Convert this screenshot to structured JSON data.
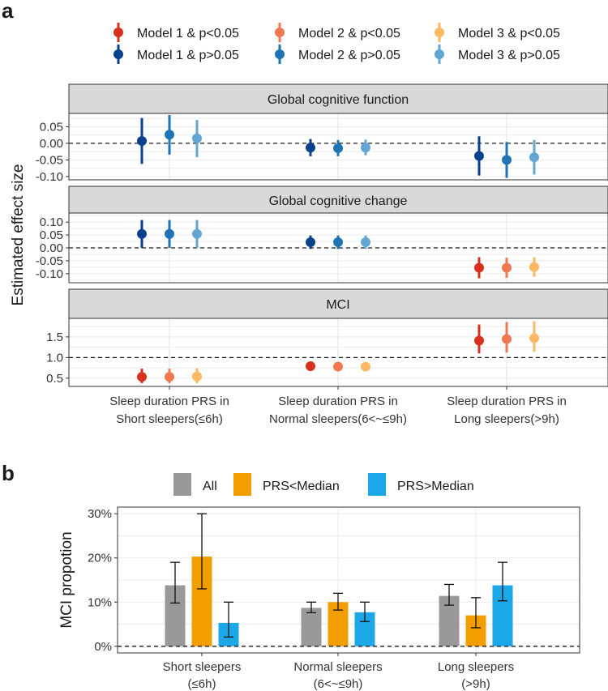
{
  "panel_a": {
    "label": "a",
    "legend": [
      {
        "name": "Model 1 & p<0.05",
        "color": "#D7301F"
      },
      {
        "name": "Model 2 & p<0.05",
        "color": "#F07850"
      },
      {
        "name": "Model 3 & p<0.05",
        "color": "#FDB863"
      },
      {
        "name": "Model 1 & p>0.05",
        "color": "#08418B"
      },
      {
        "name": "Model 2 & p>0.05",
        "color": "#1E74B4"
      },
      {
        "name": "Model 3 & p>0.05",
        "color": "#63A6D4"
      }
    ],
    "ylabel": "Estimated effect size",
    "groups": [
      [
        "Sleep duration PRS in",
        "Short sleepers(≤6h)"
      ],
      [
        "Sleep duration PRS in",
        "Normal sleepers(6<~≤9h)"
      ],
      [
        "Sleep duration PRS in",
        "Long sleepers(>9h)"
      ]
    ]
  },
  "panel_b": {
    "label": "b",
    "ylabel": "MCI propotion"
  },
  "chart_data": [
    {
      "type": "scatter",
      "subtype": "point-range",
      "title": "Global cognitive function",
      "categories": [
        "Short sleepers(≤6h)",
        "Normal sleepers(6<~≤9h)",
        "Long sleepers(>9h)"
      ],
      "models": [
        "Model 1",
        "Model 2",
        "Model 3"
      ],
      "reference_line": 0,
      "ylim": [
        -0.11,
        0.09
      ],
      "yticks": [
        0.05,
        0.0,
        -0.05,
        -0.1
      ],
      "ytick_labels": [
        "0.05",
        "0.00",
        "-0.05",
        "-0.10"
      ],
      "points": [
        [
          {
            "est": 0.007,
            "lo": -0.062,
            "hi": 0.076,
            "sig": false
          },
          {
            "est": 0.026,
            "lo": -0.034,
            "hi": 0.085,
            "sig": false
          },
          {
            "est": 0.015,
            "lo": -0.042,
            "hi": 0.07,
            "sig": false
          }
        ],
        [
          {
            "est": -0.013,
            "lo": -0.039,
            "hi": 0.013,
            "sig": false
          },
          {
            "est": -0.015,
            "lo": -0.039,
            "hi": 0.01,
            "sig": false
          },
          {
            "est": -0.013,
            "lo": -0.036,
            "hi": 0.011,
            "sig": false
          }
        ],
        [
          {
            "est": -0.038,
            "lo": -0.097,
            "hi": 0.021,
            "sig": false
          },
          {
            "est": -0.05,
            "lo": -0.104,
            "hi": 0.004,
            "sig": false
          },
          {
            "est": -0.042,
            "lo": -0.094,
            "hi": 0.01,
            "sig": false
          }
        ]
      ]
    },
    {
      "type": "scatter",
      "subtype": "point-range",
      "title": "Global cognitive change",
      "categories": [
        "Short sleepers(≤6h)",
        "Normal sleepers(6<~≤9h)",
        "Long sleepers(>9h)"
      ],
      "models": [
        "Model 1",
        "Model 2",
        "Model 3"
      ],
      "reference_line": 0,
      "ylim": [
        -0.135,
        0.135
      ],
      "yticks": [
        0.1,
        0.05,
        0.0,
        -0.05,
        -0.1
      ],
      "ytick_labels": [
        "0.10",
        "0.05",
        "0.00",
        "-0.05",
        "-0.10"
      ],
      "points": [
        [
          {
            "est": 0.054,
            "lo": 0.0,
            "hi": 0.108,
            "sig": false
          },
          {
            "est": 0.054,
            "lo": 0.0,
            "hi": 0.108,
            "sig": false
          },
          {
            "est": 0.054,
            "lo": 0.0,
            "hi": 0.108,
            "sig": false
          }
        ],
        [
          {
            "est": 0.022,
            "lo": -0.004,
            "hi": 0.048,
            "sig": false
          },
          {
            "est": 0.022,
            "lo": -0.004,
            "hi": 0.048,
            "sig": false
          },
          {
            "est": 0.022,
            "lo": -0.004,
            "hi": 0.048,
            "sig": false
          }
        ],
        [
          {
            "est": -0.077,
            "lo": -0.118,
            "hi": -0.036,
            "sig": true
          },
          {
            "est": -0.077,
            "lo": -0.116,
            "hi": -0.038,
            "sig": true
          },
          {
            "est": -0.074,
            "lo": -0.112,
            "hi": -0.036,
            "sig": true
          }
        ]
      ]
    },
    {
      "type": "scatter",
      "subtype": "point-range",
      "title": "MCI",
      "categories": [
        "Short sleepers(≤6h)",
        "Normal sleepers(6<~≤9h)",
        "Long sleepers(>9h)"
      ],
      "models": [
        "Model 1",
        "Model 2",
        "Model 3"
      ],
      "reference_line": 1,
      "ylim": [
        0.3,
        1.95
      ],
      "yticks": [
        1.5,
        1.0,
        0.5
      ],
      "ytick_labels": [
        "1.5",
        "1.0",
        "0.5"
      ],
      "points": [
        [
          {
            "est": 0.53,
            "lo": 0.38,
            "hi": 0.73,
            "sig": true
          },
          {
            "est": 0.53,
            "lo": 0.38,
            "hi": 0.73,
            "sig": true
          },
          {
            "est": 0.54,
            "lo": 0.38,
            "hi": 0.74,
            "sig": true
          }
        ],
        [
          {
            "est": 0.79,
            "lo": 0.7,
            "hi": 0.87,
            "sig": true
          },
          {
            "est": 0.78,
            "lo": 0.7,
            "hi": 0.87,
            "sig": true
          },
          {
            "est": 0.78,
            "lo": 0.7,
            "hi": 0.87,
            "sig": true
          }
        ],
        [
          {
            "est": 1.41,
            "lo": 1.1,
            "hi": 1.8,
            "sig": true
          },
          {
            "est": 1.45,
            "lo": 1.12,
            "hi": 1.86,
            "sig": true
          },
          {
            "est": 1.47,
            "lo": 1.14,
            "hi": 1.88,
            "sig": true
          }
        ]
      ]
    },
    {
      "type": "bar",
      "categories": [
        [
          "Short sleepers",
          "(≤6h)"
        ],
        [
          "Normal sleepers",
          "(6<~≤9h)"
        ],
        [
          "Long sleepers",
          "(>9h)"
        ]
      ],
      "series": [
        {
          "name": "All",
          "color": "#999999",
          "values": [
            13.8,
            8.7,
            11.4
          ],
          "err_lo": [
            9.8,
            7.6,
            9.3
          ],
          "err_hi": [
            19.0,
            10.0,
            14.0
          ]
        },
        {
          "name": "PRS<Median",
          "color": "#F29D00",
          "values": [
            20.3,
            10.0,
            7.0
          ],
          "err_lo": [
            13.0,
            8.2,
            4.2
          ],
          "err_hi": [
            30.0,
            12.0,
            11.0
          ]
        },
        {
          "name": "PRS>Median",
          "color": "#1CA7E8",
          "values": [
            5.3,
            7.7,
            13.8
          ],
          "err_lo": [
            2.1,
            5.6,
            10.3
          ],
          "err_hi": [
            10.0,
            10.0,
            19.0
          ]
        }
      ],
      "ylabel": "MCI propotion",
      "ylim": [
        -1.5,
        31.5
      ],
      "yticks": [
        0,
        10,
        20,
        30
      ],
      "ytick_labels": [
        "0%",
        "10%",
        "20%",
        "30%"
      ],
      "reference_line": 0
    }
  ]
}
